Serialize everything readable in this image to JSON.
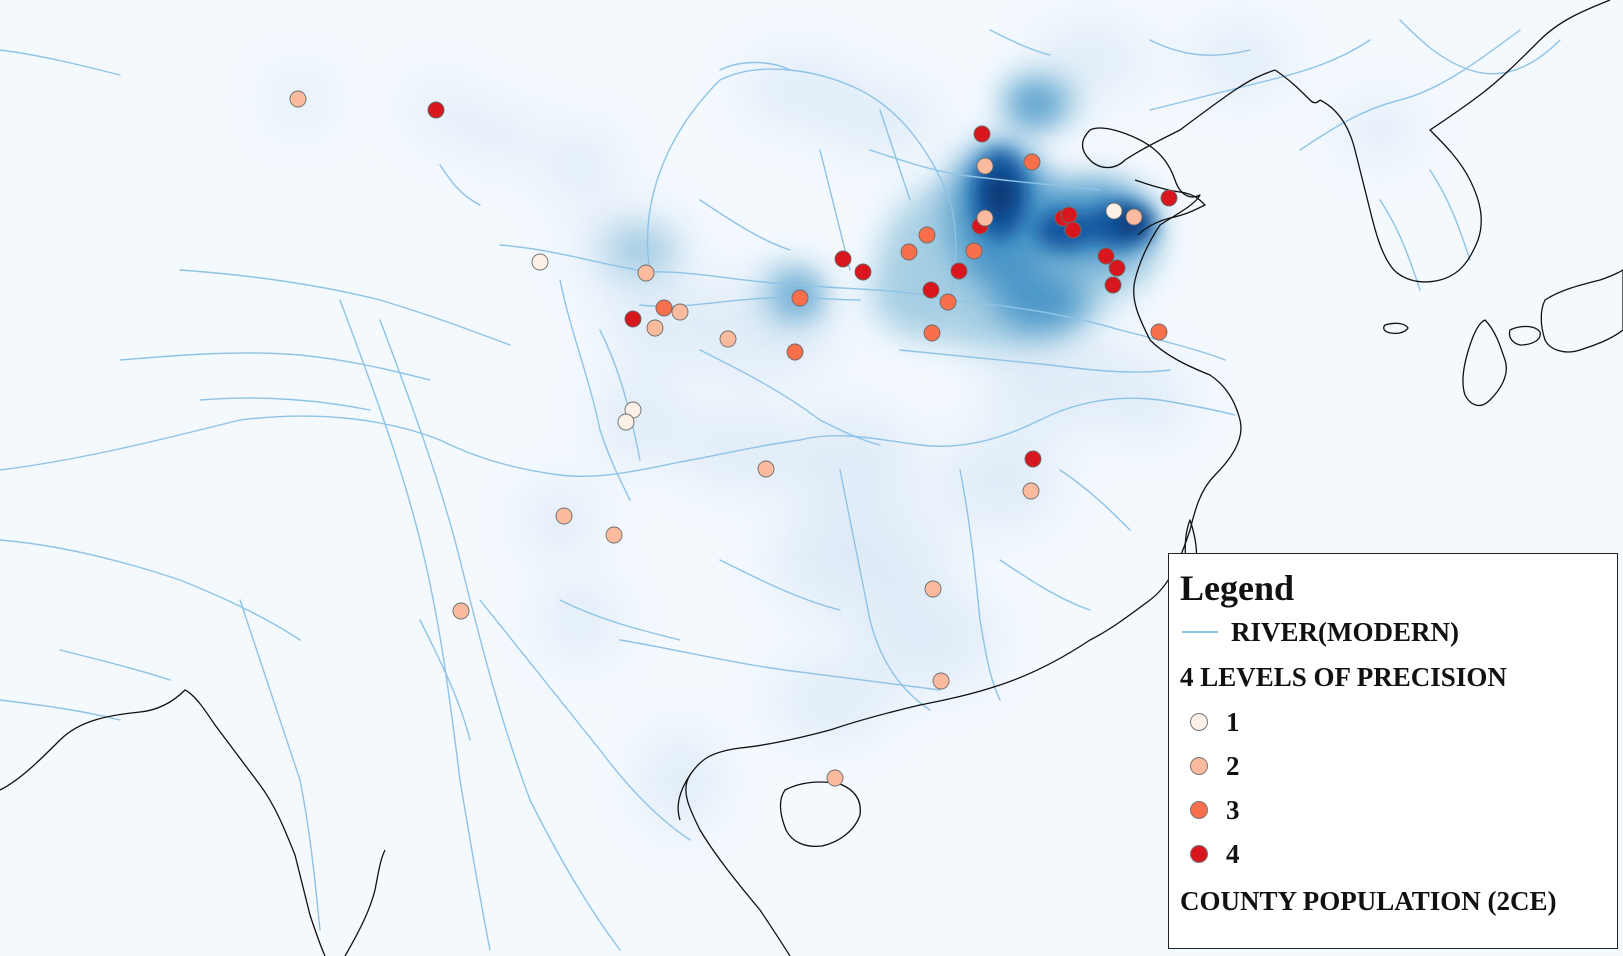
{
  "map": {
    "background": "#f4f9fe",
    "river_color": "#8ec3e6",
    "coastline_color": "#111111",
    "density_palette": [
      "#deebf7",
      "#9ecae1",
      "#4292c6",
      "#08519c",
      "#08306b"
    ]
  },
  "legend": {
    "title": "Legend",
    "river_label": "RIVER(MODERN)",
    "precision_heading": "4 LEVELS OF PRECISION",
    "levels": [
      {
        "label": "1",
        "color": "#fdf0e6"
      },
      {
        "label": "2",
        "color": "#fcbb9f"
      },
      {
        "label": "3",
        "color": "#f86f4b"
      },
      {
        "label": "4",
        "color": "#d7171d"
      }
    ],
    "population_heading": "COUNTY POPULATION (2CE)"
  }
}
